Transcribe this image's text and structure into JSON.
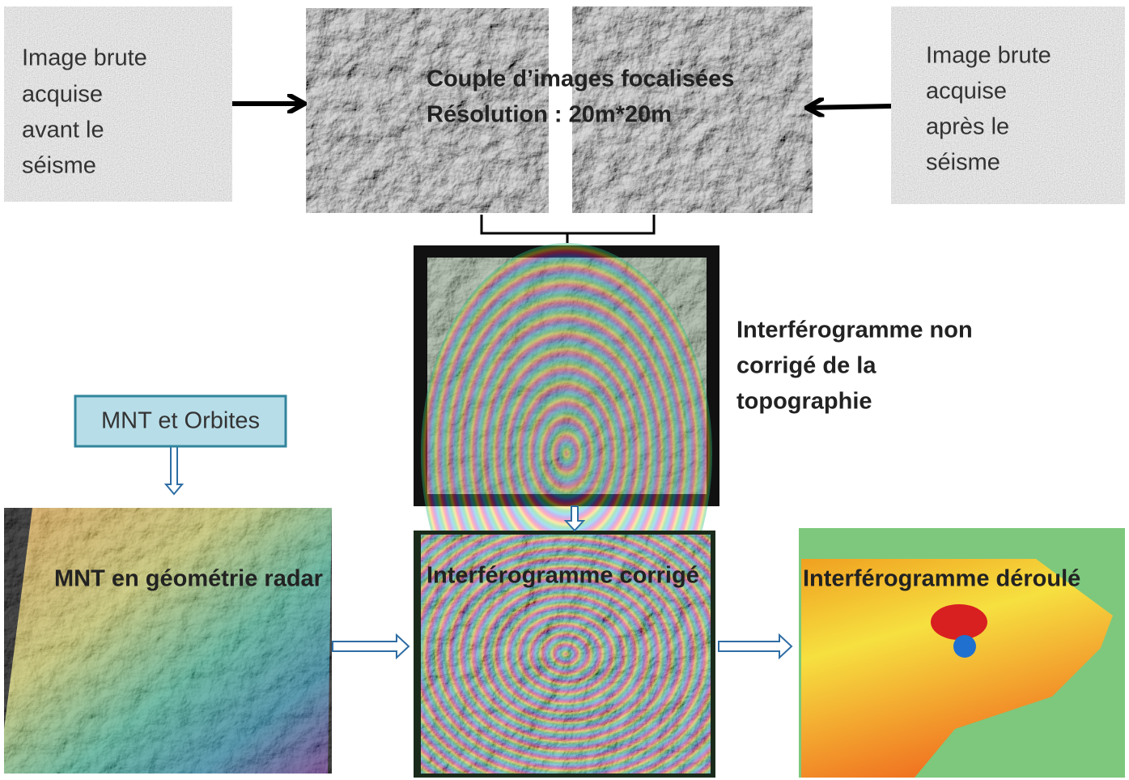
{
  "raw_before": [
    "Image brute",
    "acquise",
    "avant le",
    "séisme"
  ],
  "focused_pair": [
    "Couple d’images focalisées",
    "Résolution : 20m*20m"
  ],
  "raw_after": [
    "Image brute",
    "acquise",
    "après le",
    "séisme"
  ],
  "raw_interferogram": [
    "Interférogramme non",
    "corrigé de la",
    "topographie"
  ],
  "dem_source": "MNT et Orbites",
  "dem_radar": "MNT en géométrie radar",
  "corrected_interferogram": "Interférogramme corrigé",
  "unwrapped_interferogram": "Interférogramme déroulé"
}
